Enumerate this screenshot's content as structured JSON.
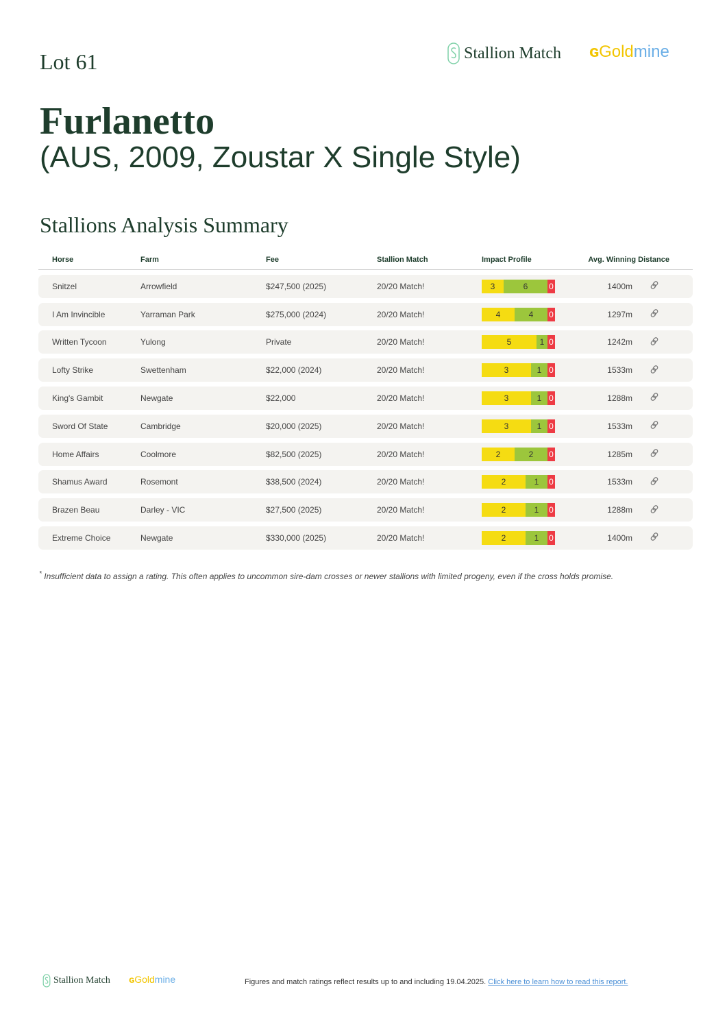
{
  "lot": "Lot 61",
  "logos": {
    "stallion_match": "Stallion Match",
    "goldmine_gold": "Gold",
    "goldmine_mine": "mine"
  },
  "horse": {
    "name": "Furlanetto",
    "details": "(AUS, 2009, Zoustar X Single Style)"
  },
  "section_title": "Stallions Analysis Summary",
  "columns": [
    "Horse",
    "Farm",
    "Fee",
    "Stallion Match",
    "Impact Profile",
    "Avg. Winning Distance"
  ],
  "rows": [
    {
      "horse": "Snitzel",
      "farm": "Arrowfield",
      "fee": "$247,500 (2025)",
      "match": "20/20 Match!",
      "impact": [
        3,
        6,
        0
      ],
      "distance": "1400m"
    },
    {
      "horse": "I Am Invincible",
      "farm": "Yarraman Park",
      "fee": "$275,000 (2024)",
      "match": "20/20 Match!",
      "impact": [
        4,
        4,
        0
      ],
      "distance": "1297m"
    },
    {
      "horse": "Written Tycoon",
      "farm": "Yulong",
      "fee": "Private",
      "match": "20/20 Match!",
      "impact": [
        5,
        1,
        0
      ],
      "distance": "1242m"
    },
    {
      "horse": "Lofty Strike",
      "farm": "Swettenham",
      "fee": "$22,000 (2024)",
      "match": "20/20 Match!",
      "impact": [
        3,
        1,
        0
      ],
      "distance": "1533m"
    },
    {
      "horse": "King's Gambit",
      "farm": "Newgate",
      "fee": "$22,000",
      "match": "20/20 Match!",
      "impact": [
        3,
        1,
        0
      ],
      "distance": "1288m"
    },
    {
      "horse": "Sword Of State",
      "farm": "Cambridge",
      "fee": "$20,000 (2025)",
      "match": "20/20 Match!",
      "impact": [
        3,
        1,
        0
      ],
      "distance": "1533m"
    },
    {
      "horse": "Home Affairs",
      "farm": "Coolmore",
      "fee": "$82,500 (2025)",
      "match": "20/20 Match!",
      "impact": [
        2,
        2,
        0
      ],
      "distance": "1285m"
    },
    {
      "horse": "Shamus Award",
      "farm": "Rosemont",
      "fee": "$38,500 (2024)",
      "match": "20/20 Match!",
      "impact": [
        2,
        1,
        0
      ],
      "distance": "1533m"
    },
    {
      "horse": "Brazen Beau",
      "farm": "Darley - VIC",
      "fee": "$27,500 (2025)",
      "match": "20/20 Match!",
      "impact": [
        2,
        1,
        0
      ],
      "distance": "1288m"
    },
    {
      "horse": "Extreme Choice",
      "farm": "Newgate",
      "fee": "$330,000 (2025)",
      "match": "20/20 Match!",
      "impact": [
        2,
        1,
        0
      ],
      "distance": "1400m"
    }
  ],
  "impact_colors": {
    "positive": "#f5dc12",
    "neutral": "#9cc63c",
    "negative": "#ee3b44"
  },
  "footnote": "Insufficient data to assign a rating. This often applies to uncommon sire-dam crosses or newer stallions with limited progeny, even if the cross holds promise.",
  "footer": {
    "text": "Figures and match ratings reflect results up to and including 19.04.2025.",
    "link": "Click here to learn how to read this report."
  }
}
